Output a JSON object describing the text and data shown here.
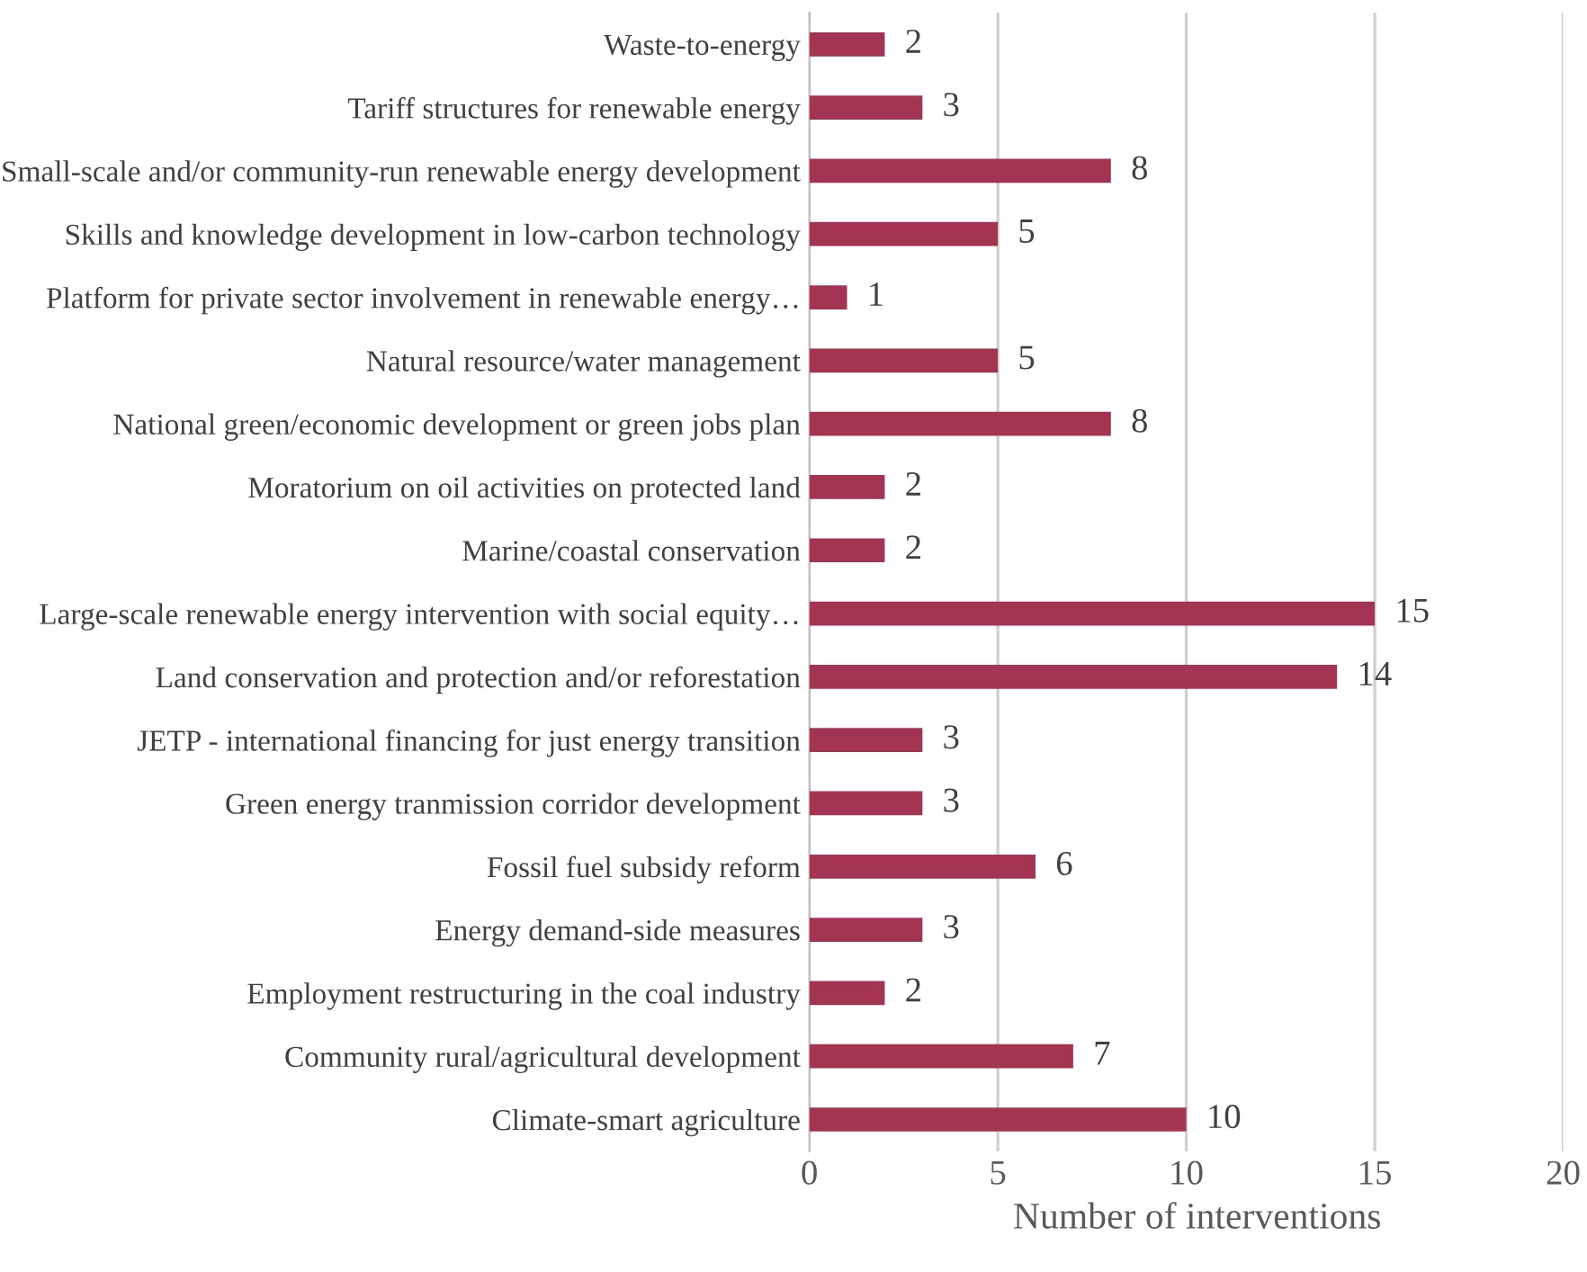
{
  "chart_data": {
    "type": "bar",
    "orientation": "horizontal",
    "xlabel": "Number of interventions",
    "categories": [
      "Waste-to-energy",
      "Tariff structures for renewable energy",
      "Small-scale and/or community-run renewable energy development",
      "Skills and knowledge development in low-carbon technology",
      "Platform for private sector involvement in renewable energy…",
      "Natural resource/water management",
      "National green/economic development or green jobs plan",
      "Moratorium on oil activities on protected land",
      "Marine/coastal conservation",
      "Large-scale renewable energy intervention with social equity…",
      "Land conservation and protection and/or reforestation",
      "JETP - international financing for just energy transition",
      "Green energy tranmission corridor development",
      "Fossil fuel subsidy reform",
      "Energy demand-side measures",
      "Employment restructuring in the coal industry",
      "Community rural/agricultural development",
      "Climate-smart agriculture"
    ],
    "values": [
      2,
      3,
      8,
      5,
      1,
      5,
      8,
      2,
      2,
      15,
      14,
      3,
      3,
      6,
      3,
      2,
      7,
      10
    ],
    "color": "#a33553",
    "xlim": [
      0,
      20
    ],
    "xticks": [
      0,
      5,
      10,
      15,
      20
    ],
    "grid": "x",
    "data_labels": true
  }
}
